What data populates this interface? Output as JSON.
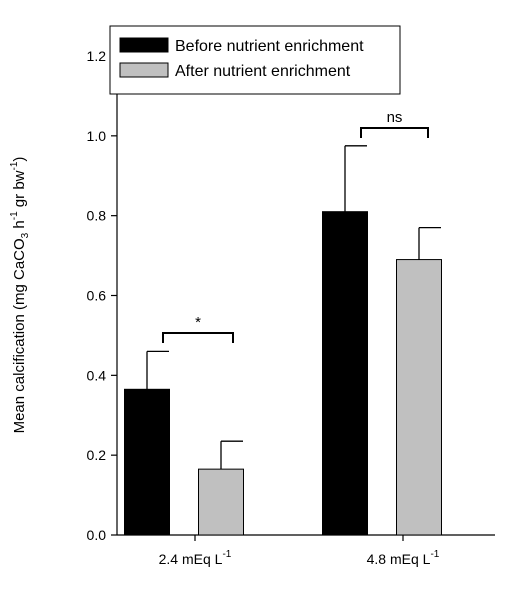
{
  "chart_data": {
    "type": "bar",
    "categories": [
      "2.4 mEq L",
      "4.8 mEq L"
    ],
    "category_superscript": "-1",
    "series": [
      {
        "name": "Before nutrient enrichment",
        "values": [
          0.365,
          0.81
        ],
        "errors": [
          0.095,
          0.165
        ],
        "color": "#000000"
      },
      {
        "name": "After nutrient enrichment",
        "values": [
          0.165,
          0.69
        ],
        "errors": [
          0.07,
          0.08
        ],
        "color": "#c0c0c0"
      }
    ],
    "ylabel": {
      "prefix": "Mean calcification (mg CaCO",
      "sub": "3",
      "mid1": " h",
      "sup1": "-1",
      "mid2": " gr bw",
      "sup2": "-1",
      "suffix": ")"
    },
    "ylim": [
      0,
      1.2
    ],
    "yticks": [
      "0.0",
      "0.2",
      "0.4",
      "0.6",
      "0.8",
      "1.0",
      "1.2"
    ],
    "significance": [
      "*",
      "ns"
    ],
    "legend_position": "top"
  }
}
